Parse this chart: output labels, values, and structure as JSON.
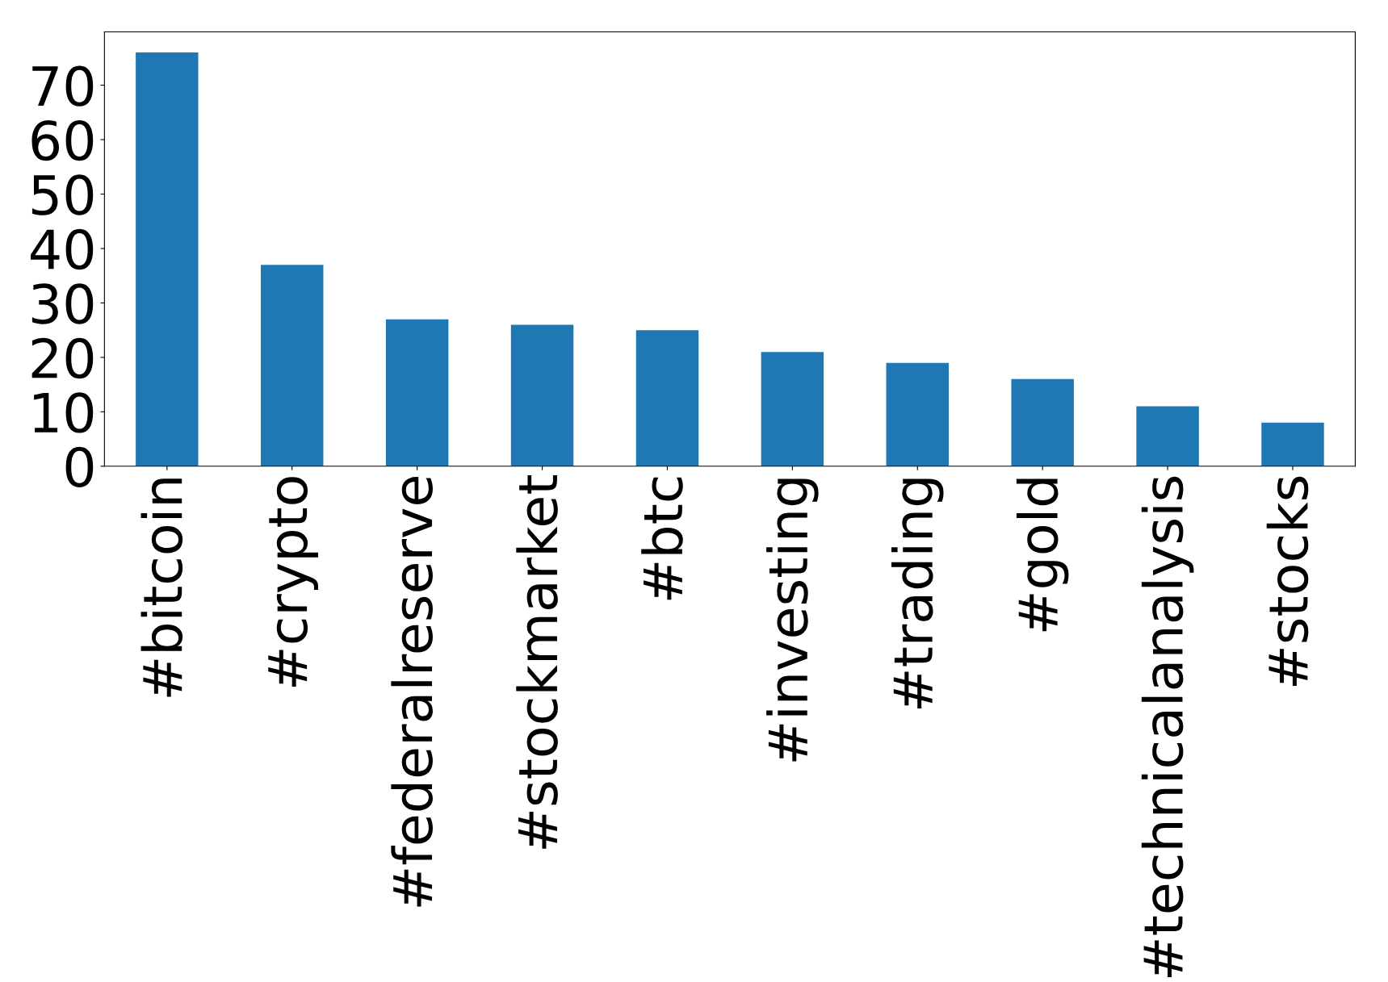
{
  "chart_data": {
    "type": "bar",
    "categories": [
      "#bitcoin",
      "#crypto",
      "#federalreserve",
      "#stockmarket",
      "#btc",
      "#investing",
      "#trading",
      "#gold",
      "#technicalanalysis",
      "#stocks"
    ],
    "values": [
      76,
      37,
      27,
      26,
      25,
      21,
      19,
      16,
      11,
      8
    ],
    "color": "#1f77b4",
    "ylim": [
      0,
      79.8
    ],
    "yticks": [
      0,
      10,
      20,
      30,
      40,
      50,
      60,
      70
    ],
    "grid": false
  }
}
